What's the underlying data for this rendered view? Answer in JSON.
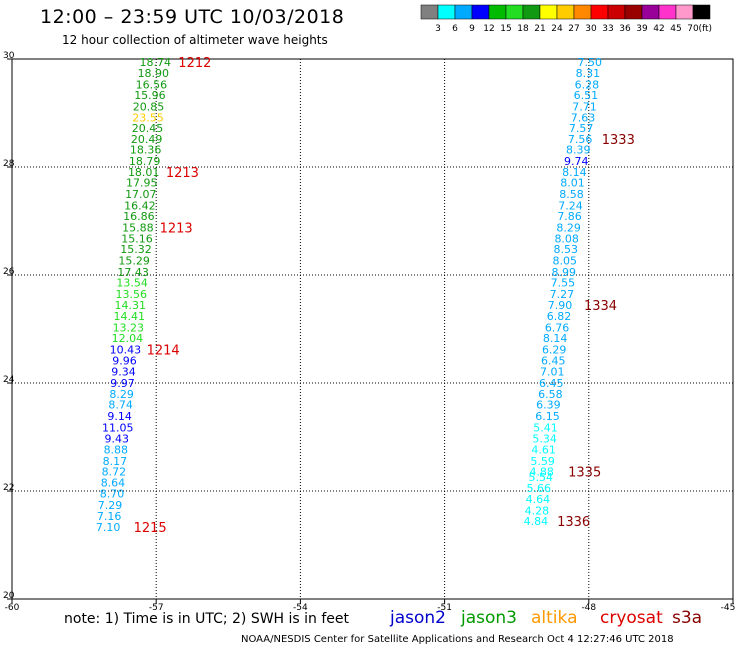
{
  "header": {
    "title": "12:00 – 23:59 UTC 10/03/2018",
    "subtitle": "12 hour collection of altimeter wave heights"
  },
  "footer": {
    "note": "note: 1) Time is in UTC; 2) SWH is in feet",
    "credit": "NOAA/NESDIS Center for Satellite Applications and Research   Oct  4 12:27:46 UTC 2018"
  },
  "satellites": [
    {
      "name": "jason2",
      "color": "#0000cc"
    },
    {
      "name": "jason3",
      "color": "#009900"
    },
    {
      "name": "altika",
      "color": "#ff9900"
    },
    {
      "name": "cryosat",
      "color": "#dd0000"
    },
    {
      "name": "s3a",
      "color": "#880000"
    }
  ],
  "chart_data": {
    "type": "scatter",
    "title": "12:00 – 23:59 UTC 10/03/2018",
    "subtitle": "12 hour collection of altimeter wave heights",
    "xlim": [
      -60,
      -45
    ],
    "ylim": [
      20,
      30
    ],
    "xticks": [
      -60,
      -57,
      -54,
      -51,
      -48,
      -45
    ],
    "yticks": [
      20,
      22,
      24,
      26,
      28,
      30
    ],
    "xticklabels": [
      "-60",
      "-57",
      "-54",
      "-51",
      "-48",
      "-45"
    ],
    "yticklabels": [
      "20",
      "22",
      "24",
      "26",
      "28",
      "30"
    ],
    "grid": true,
    "colorbar": {
      "unit": "(ft)",
      "thresholds": [
        "3",
        "6",
        "9",
        "12",
        "15",
        "18",
        "21",
        "24",
        "27",
        "30",
        "33",
        "36",
        "39",
        "42",
        "45",
        "70"
      ],
      "colors": [
        "#808080",
        "#00ffff",
        "#00aaff",
        "#0000ff",
        "#00bb00",
        "#22dd22",
        "#119911",
        "#ffff00",
        "#ffcc00",
        "#ff8800",
        "#ff0000",
        "#cc0000",
        "#990000",
        "#990099",
        "#ff33cc",
        "#ff99cc",
        "#000000"
      ]
    },
    "tracks": [
      {
        "name": "jason3",
        "points": [
          {
            "lon": -57.02,
            "lat": 29.94,
            "swh": "18.74",
            "color": "#119911"
          },
          {
            "lon": -57.06,
            "lat": 29.74,
            "swh": "18.90",
            "color": "#119911"
          },
          {
            "lon": -57.1,
            "lat": 29.53,
            "swh": "16.56",
            "color": "#119911"
          },
          {
            "lon": -57.13,
            "lat": 29.33,
            "swh": "15.96",
            "color": "#119911"
          },
          {
            "lon": -57.16,
            "lat": 29.12,
            "swh": "20.85",
            "color": "#119911"
          },
          {
            "lon": -57.17,
            "lat": 28.92,
            "swh": "23.55",
            "color": "#ffcc00"
          },
          {
            "lon": -57.18,
            "lat": 28.72,
            "swh": "20.45",
            "color": "#119911"
          },
          {
            "lon": -57.2,
            "lat": 28.52,
            "swh": "20.49",
            "color": "#119911"
          },
          {
            "lon": -57.22,
            "lat": 28.32,
            "swh": "18.36",
            "color": "#119911"
          },
          {
            "lon": -57.24,
            "lat": 28.11,
            "swh": "18.79",
            "color": "#119911"
          },
          {
            "lon": -57.26,
            "lat": 27.91,
            "swh": "18.01",
            "color": "#119911"
          },
          {
            "lon": -57.3,
            "lat": 27.71,
            "swh": "17.95",
            "color": "#119911"
          },
          {
            "lon": -57.32,
            "lat": 27.5,
            "swh": "17.07",
            "color": "#119911"
          },
          {
            "lon": -57.34,
            "lat": 27.29,
            "swh": "16.42",
            "color": "#119911"
          },
          {
            "lon": -57.36,
            "lat": 27.09,
            "swh": "16.86",
            "color": "#119911"
          },
          {
            "lon": -57.38,
            "lat": 26.88,
            "swh": "15.88",
            "color": "#119911"
          },
          {
            "lon": -57.4,
            "lat": 26.68,
            "swh": "15.16",
            "color": "#119911"
          },
          {
            "lon": -57.42,
            "lat": 26.48,
            "swh": "15.32",
            "color": "#119911"
          },
          {
            "lon": -57.46,
            "lat": 26.27,
            "swh": "15.29",
            "color": "#119911"
          },
          {
            "lon": -57.48,
            "lat": 26.06,
            "swh": "17.43",
            "color": "#119911"
          },
          {
            "lon": -57.5,
            "lat": 25.86,
            "swh": "13.54",
            "color": "#22dd22"
          },
          {
            "lon": -57.52,
            "lat": 25.65,
            "swh": "13.56",
            "color": "#22dd22"
          },
          {
            "lon": -57.54,
            "lat": 25.44,
            "swh": "14.31",
            "color": "#22dd22"
          },
          {
            "lon": -57.56,
            "lat": 25.24,
            "swh": "14.41",
            "color": "#22dd22"
          },
          {
            "lon": -57.58,
            "lat": 25.03,
            "swh": "13.23",
            "color": "#22dd22"
          },
          {
            "lon": -57.6,
            "lat": 24.83,
            "swh": "12.04",
            "color": "#22dd22"
          },
          {
            "lon": -57.64,
            "lat": 24.62,
            "swh": "10.43",
            "color": "#0000ff"
          },
          {
            "lon": -57.66,
            "lat": 24.42,
            "swh": "9.96",
            "color": "#0000ff"
          },
          {
            "lon": -57.68,
            "lat": 24.21,
            "swh": "9.34",
            "color": "#0000ff"
          },
          {
            "lon": -57.7,
            "lat": 24.0,
            "swh": "9.97",
            "color": "#0000ff"
          },
          {
            "lon": -57.72,
            "lat": 23.8,
            "swh": "8.29",
            "color": "#00aaff"
          },
          {
            "lon": -57.74,
            "lat": 23.6,
            "swh": "8.74",
            "color": "#00aaff"
          },
          {
            "lon": -57.76,
            "lat": 23.39,
            "swh": "9.14",
            "color": "#0000ff"
          },
          {
            "lon": -57.8,
            "lat": 23.18,
            "swh": "11.05",
            "color": "#0000ff"
          },
          {
            "lon": -57.82,
            "lat": 22.97,
            "swh": "9.43",
            "color": "#0000ff"
          },
          {
            "lon": -57.84,
            "lat": 22.77,
            "swh": "8.88",
            "color": "#00aaff"
          },
          {
            "lon": -57.86,
            "lat": 22.56,
            "swh": "8.17",
            "color": "#00aaff"
          },
          {
            "lon": -57.88,
            "lat": 22.36,
            "swh": "8.72",
            "color": "#00aaff"
          },
          {
            "lon": -57.9,
            "lat": 22.16,
            "swh": "8.64",
            "color": "#00aaff"
          },
          {
            "lon": -57.92,
            "lat": 21.95,
            "swh": "8.70",
            "color": "#00aaff"
          },
          {
            "lon": -57.96,
            "lat": 21.74,
            "swh": "7.29",
            "color": "#00aaff"
          },
          {
            "lon": -57.98,
            "lat": 21.54,
            "swh": "7.16",
            "color": "#00aaff"
          },
          {
            "lon": -58.0,
            "lat": 21.33,
            "swh": "7.10",
            "color": "#00aaff"
          }
        ]
      },
      {
        "name": "s3a",
        "points": [
          {
            "lon": -47.98,
            "lat": 29.94,
            "swh": "7.50",
            "color": "#00aaff"
          },
          {
            "lon": -48.02,
            "lat": 29.74,
            "swh": "8.31",
            "color": "#00aaff"
          },
          {
            "lon": -48.04,
            "lat": 29.53,
            "swh": "6.28",
            "color": "#00aaff"
          },
          {
            "lon": -48.06,
            "lat": 29.33,
            "swh": "6.51",
            "color": "#00aaff"
          },
          {
            "lon": -48.09,
            "lat": 29.12,
            "swh": "7.71",
            "color": "#00aaff"
          },
          {
            "lon": -48.12,
            "lat": 28.92,
            "swh": "7.63",
            "color": "#00aaff"
          },
          {
            "lon": -48.16,
            "lat": 28.72,
            "swh": "7.57",
            "color": "#00aaff"
          },
          {
            "lon": -48.18,
            "lat": 28.52,
            "swh": "7.56",
            "color": "#00aaff"
          },
          {
            "lon": -48.22,
            "lat": 28.32,
            "swh": "8.39",
            "color": "#00aaff"
          },
          {
            "lon": -48.26,
            "lat": 28.11,
            "swh": "9.74",
            "color": "#0000ff"
          },
          {
            "lon": -48.3,
            "lat": 27.91,
            "swh": "8.14",
            "color": "#00aaff"
          },
          {
            "lon": -48.34,
            "lat": 27.71,
            "swh": "8.01",
            "color": "#00aaff"
          },
          {
            "lon": -48.36,
            "lat": 27.5,
            "swh": "8.58",
            "color": "#00aaff"
          },
          {
            "lon": -48.38,
            "lat": 27.29,
            "swh": "7.24",
            "color": "#00aaff"
          },
          {
            "lon": -48.4,
            "lat": 27.09,
            "swh": "7.86",
            "color": "#00aaff"
          },
          {
            "lon": -48.42,
            "lat": 26.88,
            "swh": "8.29",
            "color": "#00aaff"
          },
          {
            "lon": -48.46,
            "lat": 26.68,
            "swh": "8.08",
            "color": "#00aaff"
          },
          {
            "lon": -48.48,
            "lat": 26.48,
            "swh": "8.53",
            "color": "#00aaff"
          },
          {
            "lon": -48.5,
            "lat": 26.27,
            "swh": "8.05",
            "color": "#00aaff"
          },
          {
            "lon": -48.52,
            "lat": 26.06,
            "swh": "8.99",
            "color": "#00aaff"
          },
          {
            "lon": -48.54,
            "lat": 25.86,
            "swh": "7.55",
            "color": "#00aaff"
          },
          {
            "lon": -48.56,
            "lat": 25.65,
            "swh": "7.27",
            "color": "#00aaff"
          },
          {
            "lon": -48.6,
            "lat": 25.44,
            "swh": "7.90",
            "color": "#00aaff"
          },
          {
            "lon": -48.62,
            "lat": 25.24,
            "swh": "6.82",
            "color": "#00aaff"
          },
          {
            "lon": -48.66,
            "lat": 25.03,
            "swh": "6.76",
            "color": "#00aaff"
          },
          {
            "lon": -48.7,
            "lat": 24.83,
            "swh": "8.14",
            "color": "#00aaff"
          },
          {
            "lon": -48.72,
            "lat": 24.62,
            "swh": "6.29",
            "color": "#00aaff"
          },
          {
            "lon": -48.74,
            "lat": 24.42,
            "swh": "6.45",
            "color": "#00aaff"
          },
          {
            "lon": -48.76,
            "lat": 24.21,
            "swh": "7.01",
            "color": "#00aaff"
          },
          {
            "lon": -48.78,
            "lat": 24.0,
            "swh": "6.45",
            "color": "#00aaff"
          },
          {
            "lon": -48.8,
            "lat": 23.8,
            "swh": "6.58",
            "color": "#00aaff"
          },
          {
            "lon": -48.84,
            "lat": 23.6,
            "swh": "6.39",
            "color": "#00aaff"
          },
          {
            "lon": -48.86,
            "lat": 23.39,
            "swh": "6.15",
            "color": "#00aaff"
          },
          {
            "lon": -48.9,
            "lat": 23.18,
            "swh": "5.41",
            "color": "#00ffff"
          },
          {
            "lon": -48.92,
            "lat": 22.97,
            "swh": "5.34",
            "color": "#00ffff"
          },
          {
            "lon": -48.94,
            "lat": 22.77,
            "swh": "4.61",
            "color": "#00ffff"
          },
          {
            "lon": -48.96,
            "lat": 22.56,
            "swh": "5.59",
            "color": "#00ffff"
          },
          {
            "lon": -48.98,
            "lat": 22.36,
            "swh": "4.88",
            "color": "#00ffff"
          },
          {
            "lon": -49.0,
            "lat": 22.26,
            "swh": "5.54",
            "color": "#00ffff"
          },
          {
            "lon": -49.04,
            "lat": 22.06,
            "swh": "5.66",
            "color": "#00ffff"
          },
          {
            "lon": -49.06,
            "lat": 21.85,
            "swh": "4.64",
            "color": "#00ffff"
          },
          {
            "lon": -49.08,
            "lat": 21.64,
            "swh": "4.28",
            "color": "#00ffff"
          },
          {
            "lon": -49.1,
            "lat": 21.44,
            "swh": "4.84",
            "color": "#00ffff"
          }
        ]
      }
    ],
    "time_labels": [
      {
        "text": "1212",
        "lon": -56.54,
        "lat": 29.94,
        "color": "#dd0000"
      },
      {
        "text": "1213",
        "lon": -56.8,
        "lat": 27.91,
        "color": "#dd0000"
      },
      {
        "text": "1213",
        "lon": -56.93,
        "lat": 26.88,
        "color": "#dd0000"
      },
      {
        "text": "1214",
        "lon": -57.2,
        "lat": 24.62,
        "color": "#dd0000"
      },
      {
        "text": "1215",
        "lon": -57.47,
        "lat": 21.33,
        "color": "#dd0000"
      },
      {
        "text": "1333",
        "lon": -47.73,
        "lat": 28.52,
        "color": "#880000"
      },
      {
        "text": "1334",
        "lon": -48.1,
        "lat": 25.44,
        "color": "#880000"
      },
      {
        "text": "1335",
        "lon": -48.43,
        "lat": 22.36,
        "color": "#880000"
      },
      {
        "text": "1336",
        "lon": -48.66,
        "lat": 21.44,
        "color": "#880000"
      }
    ]
  }
}
